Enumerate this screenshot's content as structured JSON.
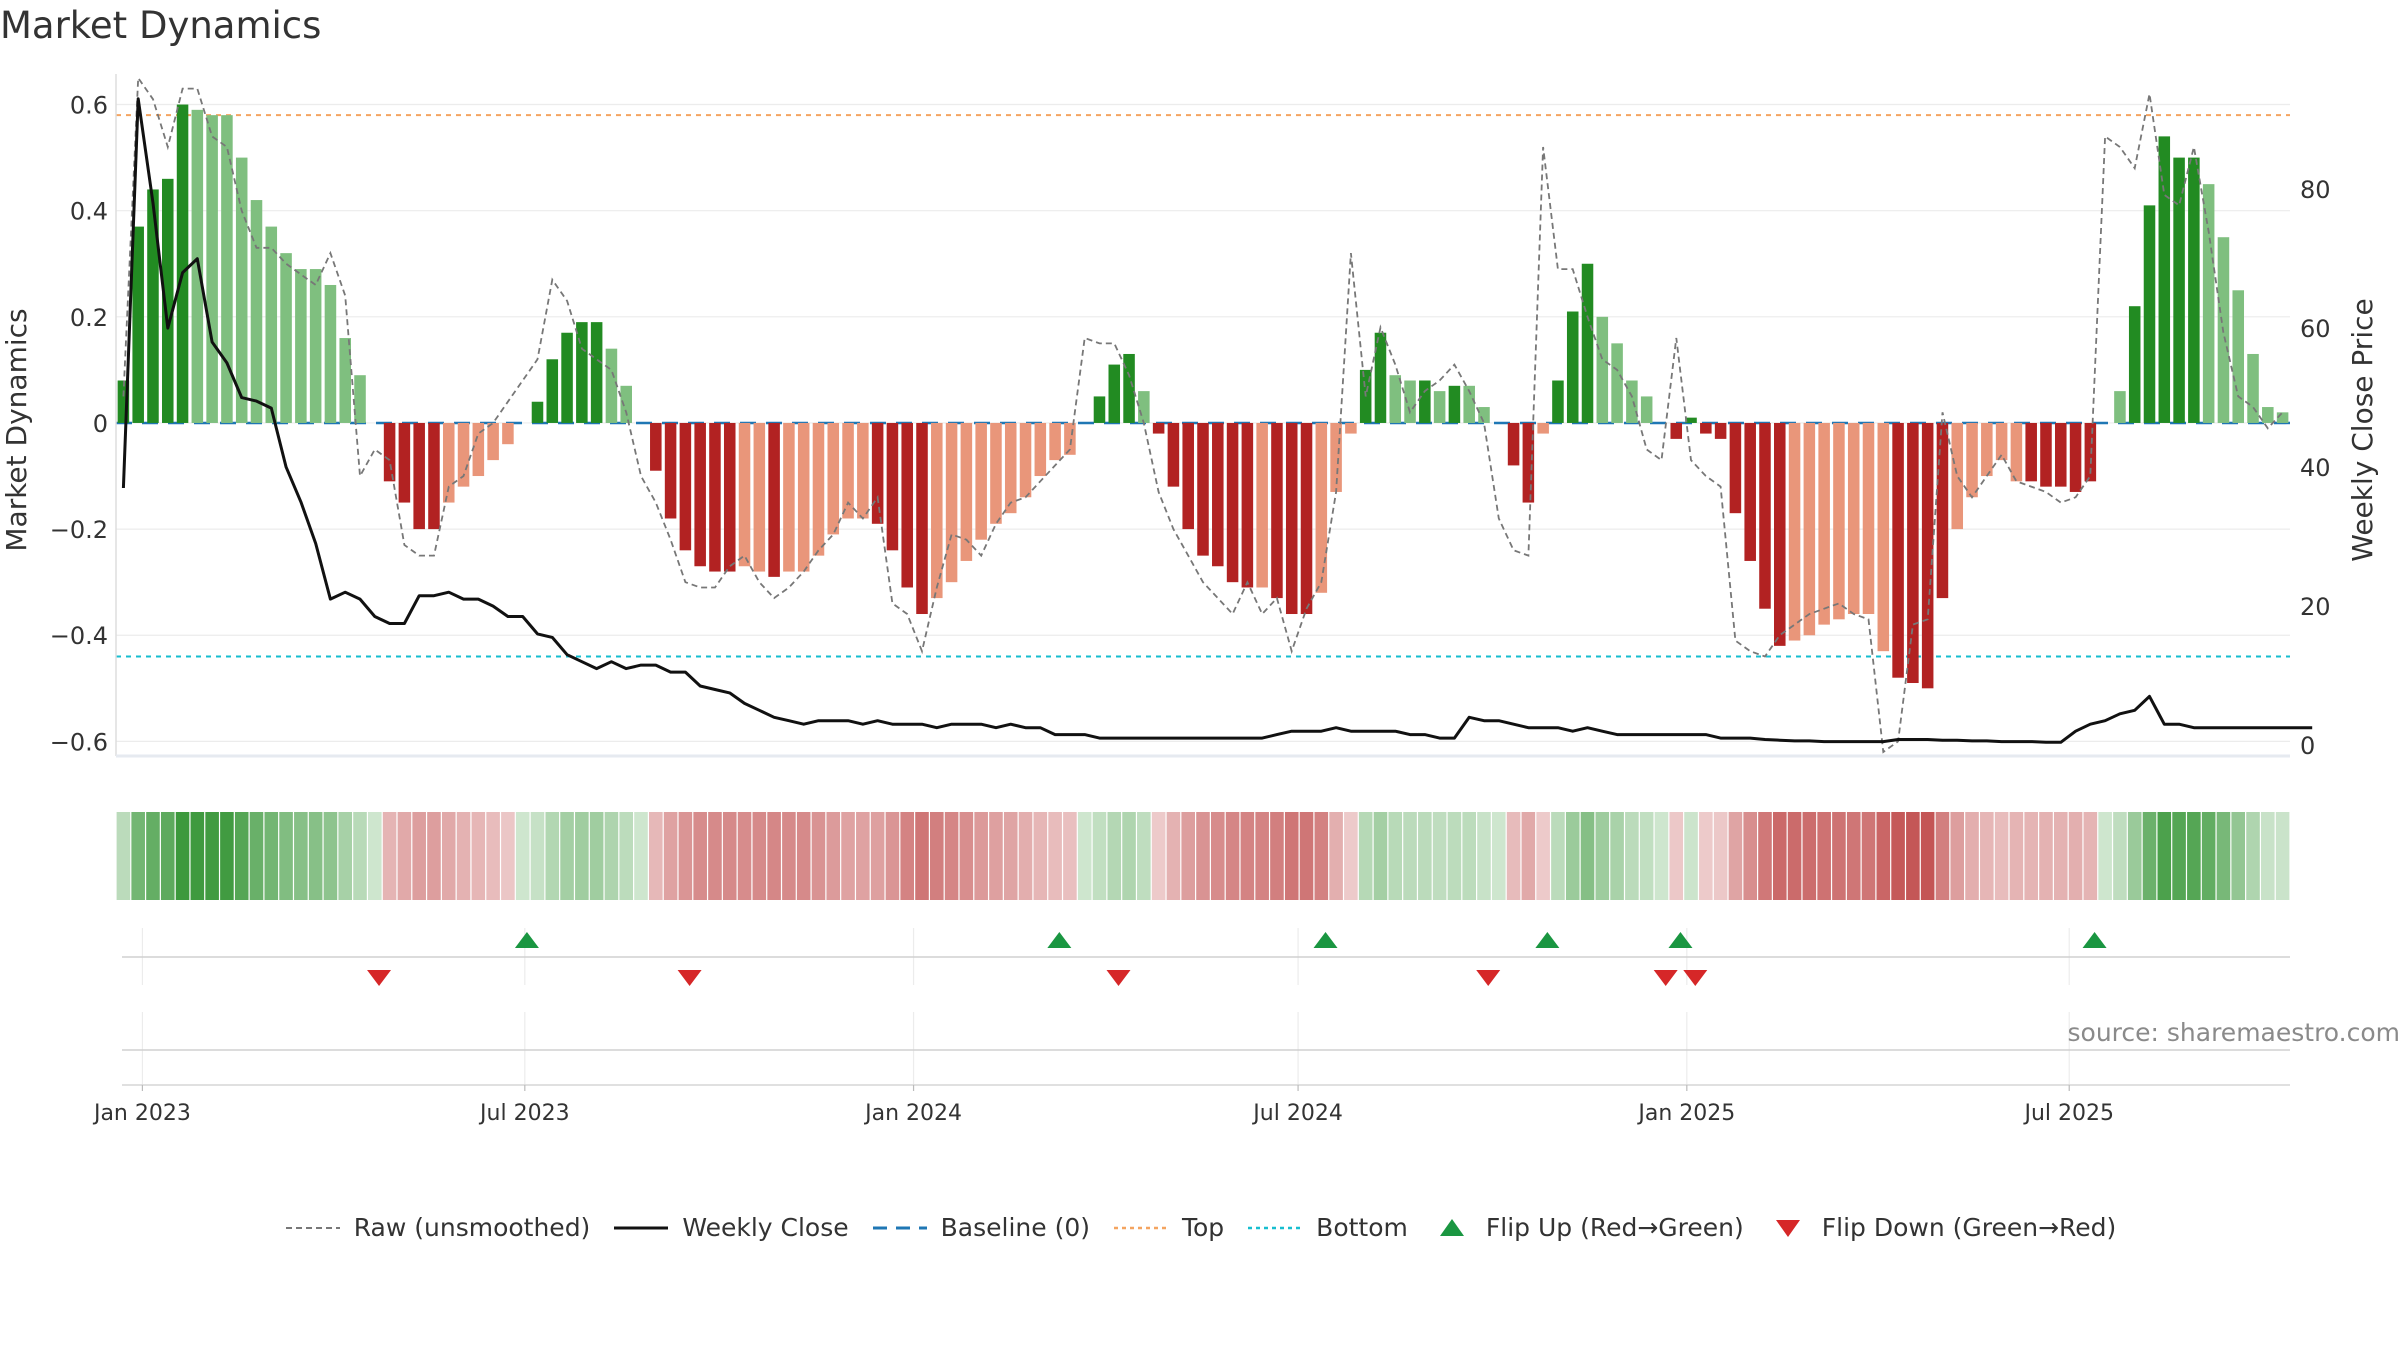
{
  "title": "Market Dynamics",
  "source": "source: sharemaestro.com",
  "legend": [
    {
      "key": "raw",
      "label": "Raw (unsmoothed)",
      "color": "#777777"
    },
    {
      "key": "close",
      "label": "Weekly Close",
      "color": "#111111"
    },
    {
      "key": "baseline",
      "label": "Baseline (0)",
      "color": "#1f77b4"
    },
    {
      "key": "top",
      "label": "Top",
      "color": "#f4a460"
    },
    {
      "key": "bottom",
      "label": "Bottom",
      "color": "#17becf"
    },
    {
      "key": "flip_up",
      "label": "Flip Up (Red→Green)",
      "color": "#1a9641"
    },
    {
      "key": "flip_down",
      "label": "Flip Down (Green→Red)",
      "color": "#d62728"
    }
  ],
  "chart_data": {
    "type": "bar",
    "title": "Market Dynamics",
    "ylabel": "Market Dynamics",
    "y2label": "Weekly Close Price",
    "ylim": [
      -0.62,
      0.65
    ],
    "y2lim": [
      -1,
      96
    ],
    "yticks": [
      0.6,
      0.4,
      0.2,
      0,
      -0.2,
      -0.4,
      -0.6
    ],
    "yticklabels": [
      "0.6",
      "0.4",
      "0.2",
      "0",
      "−0.2",
      "−0.4",
      "−0.6"
    ],
    "y2ticks": [
      80,
      60,
      40,
      20,
      0
    ],
    "xticks": [
      {
        "label": "Jan 2023",
        "date": "2023-01-01"
      },
      {
        "label": "Jul 2023",
        "date": "2023-07-01"
      },
      {
        "label": "Jan 2024",
        "date": "2024-01-01"
      },
      {
        "label": "Jul 2024",
        "date": "2024-07-01"
      },
      {
        "label": "Jan 2025",
        "date": "2025-01-01"
      },
      {
        "label": "Jul 2025",
        "date": "2025-07-01"
      }
    ],
    "start_date": "2022-12-23",
    "week_step_days": 7,
    "top_line": 0.58,
    "bottom_line": -0.44,
    "baseline": 0,
    "grid": true,
    "legend_position": "bottom",
    "colors": {
      "strong_up": "#228b22",
      "weak_up": "#7fbf7f",
      "strong_down": "#b22222",
      "weak_down": "#e9967a"
    },
    "series": [
      {
        "name": "Market Dynamics",
        "values": [
          0.08,
          0.37,
          0.44,
          0.46,
          0.6,
          0.59,
          0.58,
          0.58,
          0.5,
          0.42,
          0.37,
          0.32,
          0.29,
          0.29,
          0.26,
          0.16,
          0.09,
          0,
          -0.11,
          -0.15,
          -0.2,
          -0.2,
          -0.15,
          -0.12,
          -0.1,
          -0.07,
          -0.04,
          0,
          0.04,
          0.12,
          0.17,
          0.19,
          0.19,
          0.14,
          0.07,
          0,
          -0.09,
          -0.18,
          -0.24,
          -0.27,
          -0.28,
          -0.28,
          -0.27,
          -0.28,
          -0.29,
          -0.28,
          -0.28,
          -0.25,
          -0.21,
          -0.18,
          -0.18,
          -0.19,
          -0.24,
          -0.31,
          -0.36,
          -0.33,
          -0.3,
          -0.26,
          -0.22,
          -0.19,
          -0.17,
          -0.14,
          -0.1,
          -0.07,
          -0.06,
          0,
          0.05,
          0.11,
          0.13,
          0.06,
          -0.02,
          -0.12,
          -0.2,
          -0.25,
          -0.27,
          -0.3,
          -0.31,
          -0.31,
          -0.33,
          -0.36,
          -0.36,
          -0.32,
          -0.13,
          -0.02,
          0.1,
          0.17,
          0.09,
          0.08,
          0.08,
          0.06,
          0.07,
          0.07,
          0.03,
          0,
          -0.08,
          -0.15,
          -0.02,
          0.08,
          0.21,
          0.3,
          0.2,
          0.15,
          0.08,
          0.05,
          0,
          -0.03,
          0.01,
          -0.02,
          -0.03,
          -0.17,
          -0.26,
          -0.35,
          -0.42,
          -0.41,
          -0.4,
          -0.38,
          -0.37,
          -0.36,
          -0.36,
          -0.43,
          -0.48,
          -0.49,
          -0.5,
          -0.33,
          -0.2,
          -0.14,
          -0.1,
          -0.07,
          -0.11,
          -0.11,
          -0.12,
          -0.12,
          -0.13,
          -0.11,
          0,
          0.06,
          0.22,
          0.41,
          0.54,
          0.5,
          0.5,
          0.45,
          0.35,
          0.25,
          0.13,
          0.03,
          0.02
        ],
        "strength": [
          "s",
          "s",
          "s",
          "s",
          "s",
          "w",
          "w",
          "w",
          "w",
          "w",
          "w",
          "w",
          "w",
          "w",
          "w",
          "w",
          "w",
          "s",
          "s",
          "s",
          "s",
          "s",
          "w",
          "w",
          "w",
          "w",
          "w",
          "s",
          "s",
          "s",
          "s",
          "s",
          "s",
          "w",
          "w",
          "w",
          "s",
          "s",
          "s",
          "s",
          "s",
          "s",
          "w",
          "w",
          "s",
          "w",
          "w",
          "w",
          "w",
          "w",
          "w",
          "s",
          "s",
          "s",
          "s",
          "w",
          "w",
          "w",
          "w",
          "w",
          "w",
          "w",
          "w",
          "w",
          "w",
          "w",
          "s",
          "s",
          "s",
          "w",
          "s",
          "s",
          "s",
          "s",
          "s",
          "s",
          "s",
          "w",
          "s",
          "s",
          "s",
          "w",
          "w",
          "w",
          "s",
          "s",
          "w",
          "w",
          "s",
          "w",
          "s",
          "w",
          "w",
          "w",
          "s",
          "s",
          "w",
          "s",
          "s",
          "s",
          "w",
          "w",
          "w",
          "w",
          "w",
          "s",
          "s",
          "s",
          "s",
          "s",
          "s",
          "s",
          "s",
          "w",
          "w",
          "w",
          "w",
          "w",
          "w",
          "w",
          "s",
          "s",
          "s",
          "s",
          "w",
          "w",
          "w",
          "w",
          "w",
          "s",
          "s",
          "s",
          "s",
          "s",
          "w",
          "w",
          "s",
          "s",
          "s",
          "s",
          "s",
          "w",
          "w",
          "w",
          "w",
          "w",
          "w",
          "w"
        ]
      },
      {
        "name": "Raw (unsmoothed)",
        "values": [
          0.05,
          0.65,
          0.61,
          0.52,
          0.63,
          0.63,
          0.54,
          0.52,
          0.4,
          0.33,
          0.33,
          0.3,
          0.28,
          0.26,
          0.32,
          0.24,
          -0.1,
          -0.05,
          -0.07,
          -0.23,
          -0.25,
          -0.25,
          -0.12,
          -0.1,
          -0.02,
          0,
          0.04,
          0.08,
          0.12,
          0.27,
          0.23,
          0.14,
          0.12,
          0.1,
          0.02,
          -0.1,
          -0.15,
          -0.22,
          -0.3,
          -0.31,
          -0.31,
          -0.27,
          -0.25,
          -0.3,
          -0.33,
          -0.31,
          -0.28,
          -0.24,
          -0.21,
          -0.15,
          -0.18,
          -0.14,
          -0.34,
          -0.36,
          -0.43,
          -0.31,
          -0.21,
          -0.22,
          -0.25,
          -0.19,
          -0.15,
          -0.14,
          -0.11,
          -0.08,
          -0.05,
          0.16,
          0.15,
          0.15,
          0.09,
          0.0,
          -0.13,
          -0.2,
          -0.25,
          -0.3,
          -0.33,
          -0.36,
          -0.3,
          -0.36,
          -0.33,
          -0.43,
          -0.35,
          -0.3,
          -0.13,
          0.32,
          0.05,
          0.18,
          0.11,
          0.02,
          0.06,
          0.08,
          0.11,
          0.06,
          0.0,
          -0.18,
          -0.24,
          -0.25,
          0.52,
          0.29,
          0.29,
          0.2,
          0.12,
          0.1,
          0.05,
          -0.05,
          -0.07,
          0.16,
          -0.07,
          -0.1,
          -0.12,
          -0.41,
          -0.43,
          -0.44,
          -0.4,
          -0.38,
          -0.36,
          -0.35,
          -0.34,
          -0.36,
          -0.37,
          -0.62,
          -0.6,
          -0.38,
          -0.37,
          0.02,
          -0.1,
          -0.14,
          -0.1,
          -0.06,
          -0.11,
          -0.12,
          -0.13,
          -0.15,
          -0.14,
          -0.1,
          0.54,
          0.52,
          0.48,
          0.62,
          0.43,
          0.41,
          0.52,
          0.36,
          0.17,
          0.05,
          0.03,
          -0.01,
          0.02
        ]
      },
      {
        "name": "Weekly Close",
        "values": [
          37,
          93,
          78,
          60,
          68,
          70,
          58,
          55,
          50,
          49.5,
          48.5,
          40,
          35,
          29,
          21,
          22,
          21,
          18.5,
          17.5,
          17.5,
          21.5,
          21.5,
          22,
          21,
          21,
          20,
          18.5,
          18.5,
          16,
          15.5,
          13,
          12,
          11,
          12,
          11,
          11.5,
          11.5,
          10.5,
          10.5,
          8.5,
          8,
          7.5,
          6,
          5,
          4,
          3.5,
          3,
          3.5,
          3.5,
          3.5,
          3,
          3.5,
          3,
          3,
          3,
          2.5,
          3,
          3,
          3,
          2.5,
          3,
          2.5,
          2.5,
          1.5,
          1.5,
          1.5,
          1,
          1,
          1,
          1,
          1,
          1,
          1,
          1,
          1,
          1,
          1,
          1,
          1.5,
          2,
          2,
          2,
          2.5,
          2,
          2,
          2,
          2,
          1.5,
          1.5,
          1,
          1,
          4,
          3.5,
          3.5,
          3,
          2.5,
          2.5,
          2.5,
          2,
          2.5,
          2,
          1.5,
          1.5,
          1.5,
          1.5,
          1.5,
          1.5,
          1.5,
          1,
          1,
          1,
          0.8,
          0.7,
          0.6,
          0.6,
          0.5,
          0.5,
          0.5,
          0.5,
          0.5,
          0.8,
          0.8,
          0.8,
          0.7,
          0.7,
          0.6,
          0.6,
          0.5,
          0.5,
          0.5,
          0.4,
          0.4,
          2,
          3,
          3.5,
          4.5,
          5,
          7,
          3,
          3,
          2.5,
          2.5,
          2.5,
          2.5,
          2.5,
          2.5,
          2.5,
          2.5,
          2.5
        ]
      }
    ],
    "flip_up_dates": [
      "2023-07-02",
      "2024-03-10",
      "2024-07-14",
      "2024-10-27",
      "2024-12-29",
      "2025-07-13"
    ],
    "flip_down_dates": [
      "2023-04-23",
      "2023-09-17",
      "2024-04-07",
      "2024-09-29",
      "2024-12-22",
      "2025-01-05"
    ]
  }
}
